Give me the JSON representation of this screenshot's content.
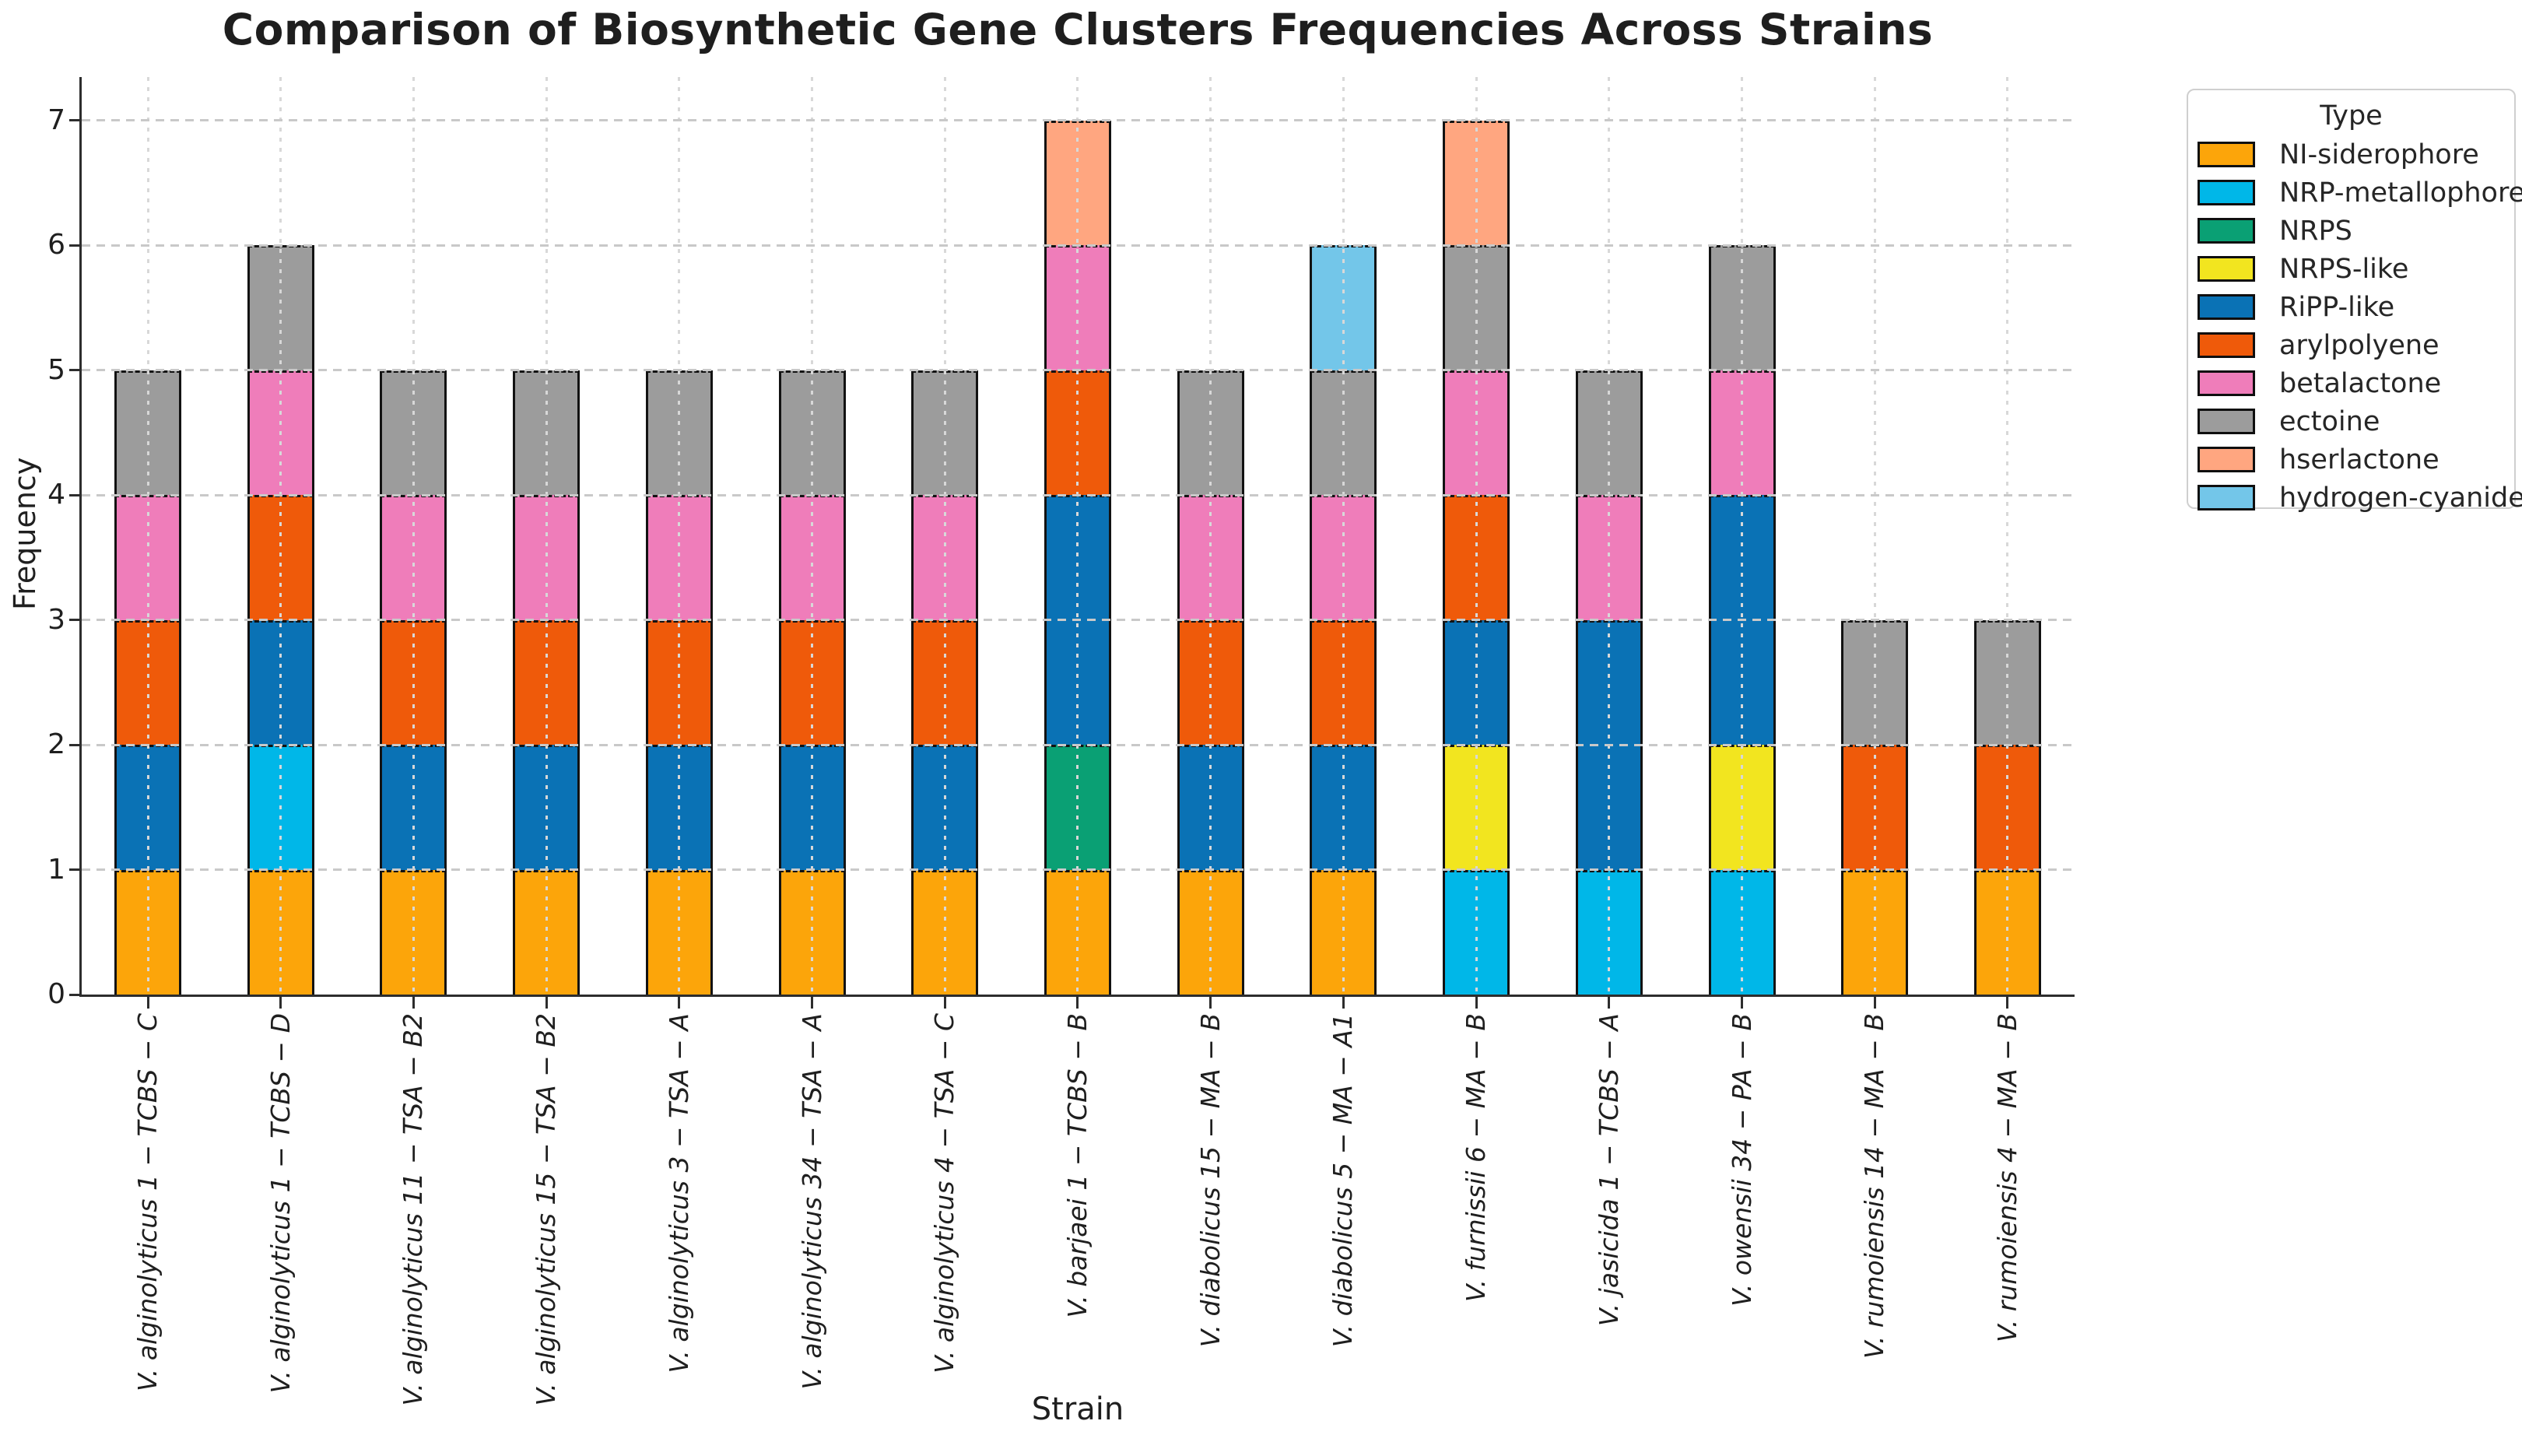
{
  "chart_data": {
    "type": "bar",
    "stacked": true,
    "title": "Comparison of Biosynthetic Gene Clusters Frequencies Across Strains",
    "xlabel": "Strain",
    "ylabel": "Frequency",
    "ylim": [
      0,
      7
    ],
    "yticks": [
      0,
      1,
      2,
      3,
      4,
      5,
      6,
      7
    ],
    "grid": true,
    "legend_title": "Type",
    "legend_position": "outside upper right",
    "types": [
      {
        "name": "NI-siderophore",
        "color": "#FCA50A"
      },
      {
        "name": "NRP-metallophore",
        "color": "#00B7E8"
      },
      {
        "name": "NRPS",
        "color": "#0AA074"
      },
      {
        "name": "NRPS-like",
        "color": "#F2E51F"
      },
      {
        "name": "RiPP-like",
        "color": "#0A72B5"
      },
      {
        "name": "arylpolyene",
        "color": "#EF5A0A"
      },
      {
        "name": "betalactone",
        "color": "#EF7DBA"
      },
      {
        "name": "ectoine",
        "color": "#9C9C9C"
      },
      {
        "name": "hserlactone",
        "color": "#FFA680"
      },
      {
        "name": "hydrogen-cyanide",
        "color": "#73C6E9"
      }
    ],
    "bars": [
      {
        "strain": "V. alginolyticus 1 − TCBS − C",
        "total": 5,
        "segments": [
          [
            "NI-siderophore",
            1
          ],
          [
            "RiPP-like",
            1
          ],
          [
            "arylpolyene",
            1
          ],
          [
            "betalactone",
            1
          ],
          [
            "ectoine",
            1
          ]
        ]
      },
      {
        "strain": "V. alginolyticus 1 − TCBS − D",
        "total": 6,
        "segments": [
          [
            "NI-siderophore",
            1
          ],
          [
            "NRP-metallophore",
            1
          ],
          [
            "RiPP-like",
            1
          ],
          [
            "arylpolyene",
            1
          ],
          [
            "betalactone",
            1
          ],
          [
            "ectoine",
            1
          ]
        ]
      },
      {
        "strain": "V. alginolyticus 11 − TSA − B2",
        "total": 5,
        "segments": [
          [
            "NI-siderophore",
            1
          ],
          [
            "RiPP-like",
            1
          ],
          [
            "arylpolyene",
            1
          ],
          [
            "betalactone",
            1
          ],
          [
            "ectoine",
            1
          ]
        ]
      },
      {
        "strain": "V. alginolyticus 15 − TSA − B2",
        "total": 5,
        "segments": [
          [
            "NI-siderophore",
            1
          ],
          [
            "RiPP-like",
            1
          ],
          [
            "arylpolyene",
            1
          ],
          [
            "betalactone",
            1
          ],
          [
            "ectoine",
            1
          ]
        ]
      },
      {
        "strain": "V. alginolyticus 3 − TSA − A",
        "total": 5,
        "segments": [
          [
            "NI-siderophore",
            1
          ],
          [
            "RiPP-like",
            1
          ],
          [
            "arylpolyene",
            1
          ],
          [
            "betalactone",
            1
          ],
          [
            "ectoine",
            1
          ]
        ]
      },
      {
        "strain": "V. alginolyticus 34 − TSA − A",
        "total": 5,
        "segments": [
          [
            "NI-siderophore",
            1
          ],
          [
            "RiPP-like",
            1
          ],
          [
            "arylpolyene",
            1
          ],
          [
            "betalactone",
            1
          ],
          [
            "ectoine",
            1
          ]
        ]
      },
      {
        "strain": "V. alginolyticus 4 − TSA − C",
        "total": 5,
        "segments": [
          [
            "NI-siderophore",
            1
          ],
          [
            "RiPP-like",
            1
          ],
          [
            "arylpolyene",
            1
          ],
          [
            "betalactone",
            1
          ],
          [
            "ectoine",
            1
          ]
        ]
      },
      {
        "strain": "V. barjaei 1 − TCBS − B",
        "total": 7,
        "segments": [
          [
            "NI-siderophore",
            1
          ],
          [
            "NRPS",
            1
          ],
          [
            "RiPP-like",
            2
          ],
          [
            "arylpolyene",
            1
          ],
          [
            "betalactone",
            1
          ],
          [
            "hserlactone",
            1
          ]
        ]
      },
      {
        "strain": "V. diabolicus 15 − MA − B",
        "total": 5,
        "segments": [
          [
            "NI-siderophore",
            1
          ],
          [
            "RiPP-like",
            1
          ],
          [
            "arylpolyene",
            1
          ],
          [
            "betalactone",
            1
          ],
          [
            "ectoine",
            1
          ]
        ]
      },
      {
        "strain": "V. diabolicus 5 − MA − A1",
        "total": 6,
        "segments": [
          [
            "NI-siderophore",
            1
          ],
          [
            "RiPP-like",
            1
          ],
          [
            "arylpolyene",
            1
          ],
          [
            "betalactone",
            1
          ],
          [
            "ectoine",
            1
          ],
          [
            "hydrogen-cyanide",
            1
          ]
        ]
      },
      {
        "strain": "V. furnissii 6 − MA − B",
        "total": 7,
        "segments": [
          [
            "NRP-metallophore",
            1
          ],
          [
            "NRPS-like",
            1
          ],
          [
            "RiPP-like",
            1
          ],
          [
            "arylpolyene",
            1
          ],
          [
            "betalactone",
            1
          ],
          [
            "ectoine",
            1
          ],
          [
            "hserlactone",
            1
          ]
        ]
      },
      {
        "strain": "V. jasicida 1 − TCBS − A",
        "total": 5,
        "segments": [
          [
            "NRP-metallophore",
            1
          ],
          [
            "RiPP-like",
            2
          ],
          [
            "betalactone",
            1
          ],
          [
            "ectoine",
            1
          ]
        ]
      },
      {
        "strain": "V. owensii 34 − PA − B",
        "total": 6,
        "segments": [
          [
            "NRP-metallophore",
            1
          ],
          [
            "NRPS-like",
            1
          ],
          [
            "RiPP-like",
            2
          ],
          [
            "betalactone",
            1
          ],
          [
            "ectoine",
            1
          ]
        ]
      },
      {
        "strain": "V. rumoiensis 14 − MA − B",
        "total": 3,
        "segments": [
          [
            "NI-siderophore",
            1
          ],
          [
            "arylpolyene",
            1
          ],
          [
            "ectoine",
            1
          ]
        ]
      },
      {
        "strain": "V. rumoiensis 4 − MA − B",
        "total": 3,
        "segments": [
          [
            "NI-siderophore",
            1
          ],
          [
            "arylpolyene",
            1
          ],
          [
            "ectoine",
            1
          ]
        ]
      }
    ]
  }
}
